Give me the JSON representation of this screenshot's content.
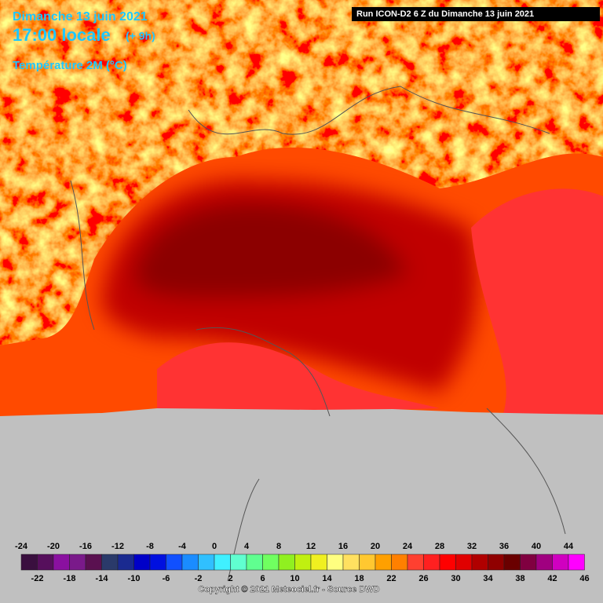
{
  "header": {
    "date": "Dimanche 13 juin 2021",
    "time": "17:00 locale",
    "offset": "(+ 9h)",
    "parameter": "Température 2M (°C)",
    "run": "Run ICON-D2 6 Z du Dimanche 13 juin 2021"
  },
  "legend": {
    "ticks": [
      -24,
      -22,
      -20,
      -18,
      -16,
      -14,
      -12,
      -10,
      -8,
      -6,
      -4,
      -2,
      0,
      2,
      4,
      6,
      8,
      10,
      12,
      14,
      16,
      18,
      20,
      22,
      24,
      26,
      28,
      30,
      32,
      34,
      36,
      38,
      40,
      42,
      44,
      46
    ],
    "colors": [
      "#3a0f3f",
      "#560f5c",
      "#8a10a0",
      "#7a1a8a",
      "#5a1050",
      "#2a3a6a",
      "#1a2a90",
      "#0000c8",
      "#0010e0",
      "#1050ff",
      "#1a8cff",
      "#30c0ff",
      "#40f0ff",
      "#60ffd0",
      "#60ff90",
      "#70ff60",
      "#90f020",
      "#c0f010",
      "#f0f020",
      "#ffff80",
      "#ffe060",
      "#ffc830",
      "#ffa000",
      "#ff8000",
      "#ff4030",
      "#ff2020",
      "#ff0000",
      "#e00000",
      "#b00000",
      "#900000",
      "#6a0000",
      "#800040",
      "#a00080",
      "#d000c0",
      "#ff00ff"
    ]
  },
  "footer": {
    "copyright": "Copyright © 2021 Meteociel.fr - Source DWD"
  }
}
